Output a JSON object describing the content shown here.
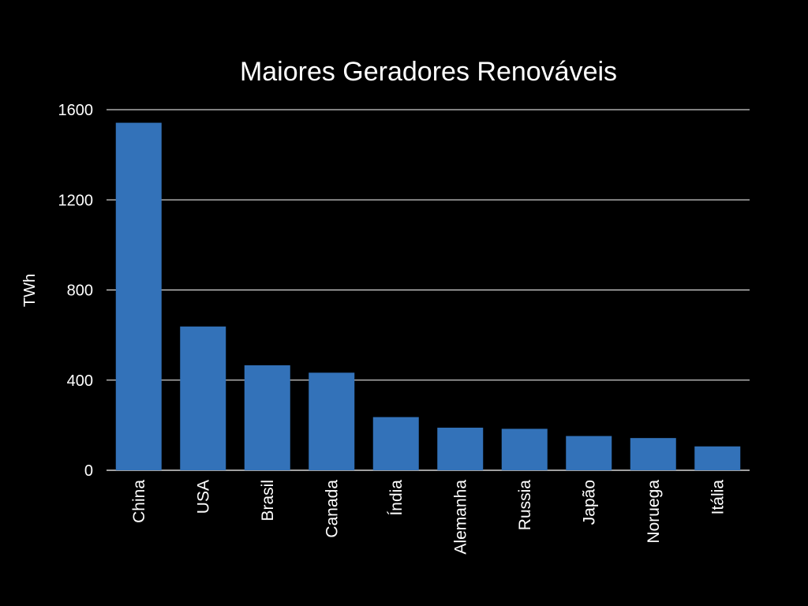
{
  "chart_data": {
    "type": "bar",
    "title": "Maiores Geradores Renováveis",
    "xlabel": "",
    "ylabel": "TWh",
    "categories": [
      "China",
      "USA",
      "Brasil",
      "Canada",
      "Índia",
      "Alemanha",
      "Russia",
      "Japão",
      "Noruega",
      "Itália"
    ],
    "values": [
      1542,
      638,
      466,
      433,
      236,
      189,
      184,
      152,
      143,
      106
    ],
    "yticks": [
      "0",
      "400",
      "800",
      "1200",
      "1600"
    ],
    "ylim": [
      0,
      1600
    ],
    "grid": true,
    "legend": "none",
    "colors": {
      "background": "#000000",
      "bar": "#3372b9",
      "grid": "#ffffff",
      "text": "#ffffff"
    }
  }
}
